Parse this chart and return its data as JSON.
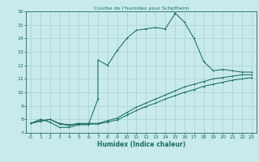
{
  "title": "Courbe de l'humidex pour Schpfheim",
  "xlabel": "Humidex (Indice chaleur)",
  "bg_color": "#c8eaea",
  "grid_color": "#b0d4d4",
  "line_color": "#1a6e64",
  "xlim": [
    -0.5,
    23.5
  ],
  "ylim": [
    7,
    16
  ],
  "xticks": [
    0,
    1,
    2,
    3,
    4,
    5,
    6,
    7,
    8,
    9,
    10,
    11,
    12,
    13,
    14,
    15,
    16,
    17,
    18,
    19,
    20,
    21,
    22,
    23
  ],
  "yticks": [
    7,
    8,
    9,
    10,
    11,
    12,
    13,
    14,
    15,
    16
  ],
  "curve1_x": [
    0,
    1,
    2,
    3,
    4,
    5,
    6,
    7,
    7,
    8,
    9,
    10,
    11,
    12,
    13,
    14,
    15,
    15,
    16,
    17,
    18,
    19,
    20,
    21,
    22,
    23
  ],
  "curve1_y": [
    7.7,
    8.0,
    7.8,
    7.4,
    7.4,
    7.6,
    7.6,
    9.5,
    12.4,
    12.0,
    13.1,
    14.0,
    14.6,
    14.7,
    14.8,
    14.7,
    15.8,
    15.9,
    15.2,
    14.0,
    12.3,
    11.6,
    11.7,
    11.6,
    11.5,
    11.5
  ],
  "curve2_x": [
    0,
    1,
    2,
    3,
    4,
    5,
    6,
    7,
    8,
    9,
    10,
    11,
    12,
    13,
    14,
    15,
    16,
    17,
    18,
    19,
    20,
    21,
    22,
    23
  ],
  "curve2_y": [
    7.7,
    7.9,
    8.0,
    7.7,
    7.6,
    7.7,
    7.7,
    7.7,
    7.9,
    8.1,
    8.5,
    8.9,
    9.2,
    9.5,
    9.8,
    10.1,
    10.4,
    10.6,
    10.8,
    11.0,
    11.1,
    11.2,
    11.3,
    11.3
  ],
  "curve3_x": [
    0,
    1,
    2,
    3,
    4,
    5,
    6,
    7,
    8,
    9,
    10,
    11,
    12,
    13,
    14,
    15,
    16,
    17,
    18,
    19,
    20,
    21,
    22,
    23
  ],
  "curve3_y": [
    7.7,
    7.85,
    8.0,
    7.65,
    7.55,
    7.65,
    7.65,
    7.65,
    7.8,
    7.95,
    8.3,
    8.65,
    8.95,
    9.2,
    9.5,
    9.75,
    10.0,
    10.2,
    10.45,
    10.6,
    10.75,
    10.9,
    11.0,
    11.1
  ]
}
